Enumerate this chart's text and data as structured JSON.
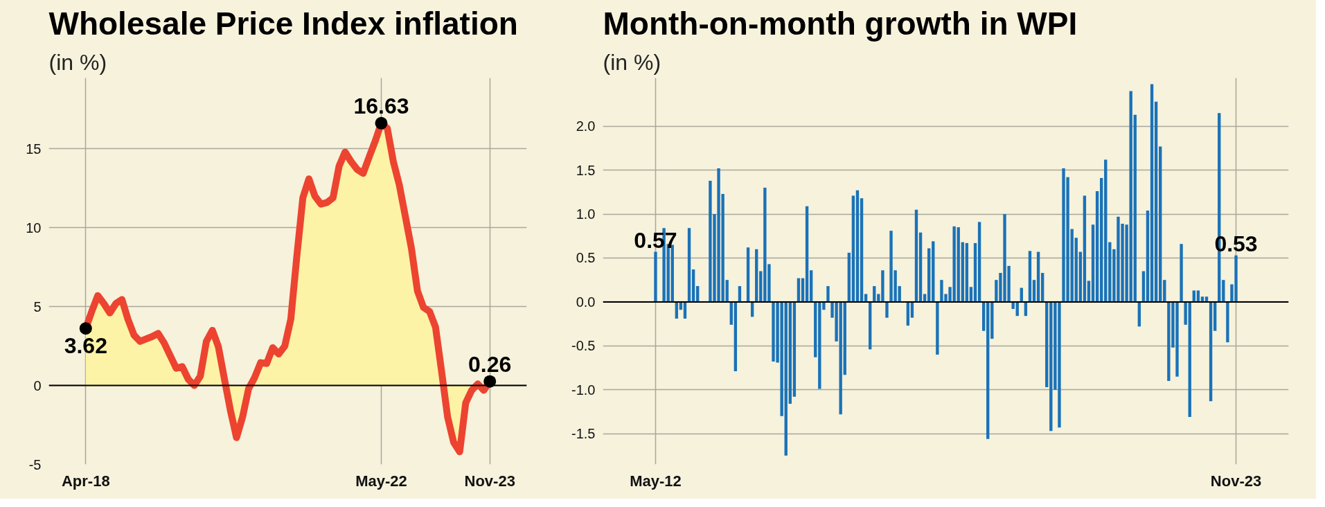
{
  "chart_data": [
    {
      "type": "area",
      "title": "Wholesale Price Index inflation",
      "subtitle": "(in %)",
      "categories": [
        "Apr-18",
        null,
        null,
        null,
        null,
        null,
        null,
        null,
        null,
        null,
        null,
        null,
        null,
        null,
        null,
        null,
        null,
        null,
        null,
        null,
        null,
        null,
        null,
        null,
        null,
        null,
        null,
        null,
        null,
        null,
        null,
        null,
        null,
        null,
        null,
        null,
        null,
        null,
        null,
        null,
        null,
        null,
        null,
        null,
        null,
        null,
        null,
        null,
        null,
        "May-22",
        null,
        null,
        null,
        null,
        null,
        null,
        null,
        null,
        null,
        null,
        null,
        null,
        null,
        null,
        null,
        null,
        null,
        "Nov-23"
      ],
      "series": [
        {
          "color": "#ec4430",
          "values": [
            3.62,
            4.7,
            5.7,
            5.2,
            4.6,
            5.2,
            5.45,
            4.2,
            3.2,
            2.8,
            2.95,
            3.1,
            3.3,
            2.7,
            1.9,
            1.1,
            1.2,
            0.4,
            0.0,
            0.6,
            2.8,
            3.5,
            2.45,
            0.4,
            -1.6,
            -3.3,
            -2.0,
            -0.2,
            0.5,
            1.45,
            1.4,
            2.4,
            2.0,
            2.5,
            4.2,
            8.2,
            11.9,
            13.1,
            12.0,
            11.5,
            11.6,
            11.9,
            13.9,
            14.8,
            14.2,
            13.7,
            13.45,
            14.5,
            15.5,
            16.63,
            16.3,
            14.2,
            12.7,
            10.7,
            8.7,
            6.0,
            4.95,
            4.7,
            3.7,
            0.9,
            -2.0,
            -3.6,
            -4.2,
            -1.1,
            -0.3,
            0.1,
            -0.3,
            0.26
          ],
          "value_labels": [
            "3.62",
            null,
            null,
            null,
            null,
            null,
            null,
            null,
            null,
            null,
            null,
            null,
            null,
            null,
            null,
            null,
            null,
            null,
            null,
            null,
            null,
            null,
            null,
            null,
            null,
            null,
            null,
            null,
            null,
            null,
            null,
            null,
            null,
            null,
            null,
            null,
            null,
            null,
            null,
            null,
            null,
            null,
            null,
            null,
            null,
            null,
            null,
            null,
            null,
            "16.63",
            null,
            null,
            null,
            null,
            null,
            null,
            null,
            null,
            null,
            null,
            null,
            null,
            null,
            null,
            null,
            null,
            null,
            "0.26"
          ]
        }
      ],
      "ylim": [
        -5,
        19.5
      ],
      "yticks": [
        15,
        10,
        5,
        0,
        -5
      ],
      "grid": true,
      "ref_lines": [
        {
          "axis": "y",
          "value": 0,
          "color": "#000000"
        }
      ]
    },
    {
      "type": "bar",
      "title": "Month-on-month growth in WPI",
      "subtitle": "(in %)",
      "categories": [
        "May-12",
        null,
        null,
        null,
        null,
        null,
        null,
        null,
        null,
        null,
        null,
        null,
        null,
        null,
        null,
        null,
        null,
        null,
        null,
        null,
        null,
        null,
        null,
        null,
        null,
        null,
        null,
        null,
        null,
        null,
        null,
        null,
        null,
        null,
        null,
        null,
        null,
        null,
        null,
        null,
        null,
        null,
        null,
        null,
        null,
        null,
        null,
        null,
        null,
        null,
        null,
        null,
        null,
        null,
        null,
        null,
        null,
        null,
        null,
        null,
        null,
        null,
        null,
        null,
        null,
        null,
        null,
        null,
        null,
        null,
        null,
        null,
        null,
        null,
        null,
        null,
        null,
        null,
        null,
        null,
        null,
        null,
        null,
        null,
        null,
        null,
        null,
        null,
        null,
        null,
        null,
        null,
        null,
        null,
        null,
        null,
        null,
        null,
        null,
        null,
        null,
        null,
        null,
        null,
        null,
        null,
        null,
        null,
        null,
        null,
        null,
        null,
        null,
        null,
        null,
        null,
        null,
        null,
        null,
        null,
        null,
        null,
        null,
        null,
        null,
        null,
        null,
        null,
        null,
        null,
        null,
        null,
        null,
        null,
        null,
        null,
        null,
        null,
        "Nov-23"
      ],
      "series": [
        {
          "color": "#1a72b8",
          "values": [
            0.57,
            0,
            0.84,
            0.66,
            0.65,
            -0.19,
            -0.09,
            -0.19,
            0.84,
            0.37,
            0.18,
            0,
            0,
            1.38,
            1.0,
            1.52,
            1.23,
            0.25,
            -0.26,
            -0.79,
            0.18,
            0,
            0.62,
            -0.17,
            0.6,
            0.35,
            1.3,
            0.43,
            -0.68,
            -0.69,
            -1.3,
            -1.75,
            -1.16,
            -1.08,
            0.27,
            0.27,
            1.09,
            0.36,
            -0.63,
            -0.99,
            -0.09,
            0.18,
            -0.18,
            -0.45,
            -1.28,
            -0.83,
            0.56,
            1.21,
            1.27,
            1.18,
            0.09,
            -0.54,
            0.18,
            0.09,
            0.36,
            -0.18,
            0.81,
            0.36,
            0.18,
            0,
            -0.27,
            -0.18,
            1.05,
            0.79,
            0.09,
            0.61,
            0.69,
            -0.6,
            0.25,
            0.09,
            0.17,
            0.86,
            0.85,
            0.68,
            0.67,
            0.17,
            0.67,
            0.91,
            -0.33,
            -1.56,
            -0.42,
            0.25,
            0.33,
            1.0,
            0.41,
            -0.08,
            -0.16,
            0.16,
            -0.16,
            0.58,
            0.25,
            0.57,
            0.33,
            -0.97,
            -1.47,
            -1.0,
            -1.43,
            1.52,
            1.42,
            0.83,
            0.73,
            0.57,
            1.21,
            0.24,
            0.88,
            1.26,
            1.41,
            1.62,
            0.68,
            0.6,
            0.97,
            0.89,
            0.88,
            2.4,
            2.13,
            -0.28,
            0.35,
            1.04,
            2.48,
            2.28,
            1.77,
            0.25,
            -0.9,
            -0.52,
            -0.85,
            0.66,
            -0.26,
            -1.31,
            0.13,
            0.13,
            0.06,
            0.06,
            -1.13,
            -0.33,
            2.15,
            0.25,
            -0.46,
            0.2,
            0.53
          ],
          "value_labels": [
            "0.57",
            null,
            null,
            null,
            null,
            null,
            null,
            null,
            null,
            null,
            null,
            null,
            null,
            null,
            null,
            null,
            null,
            null,
            null,
            null,
            null,
            null,
            null,
            null,
            null,
            null,
            null,
            null,
            null,
            null,
            null,
            null,
            null,
            null,
            null,
            null,
            null,
            null,
            null,
            null,
            null,
            null,
            null,
            null,
            null,
            null,
            null,
            null,
            null,
            null,
            null,
            null,
            null,
            null,
            null,
            null,
            null,
            null,
            null,
            null,
            null,
            null,
            null,
            null,
            null,
            null,
            null,
            null,
            null,
            null,
            null,
            null,
            null,
            null,
            null,
            null,
            null,
            null,
            null,
            null,
            null,
            null,
            null,
            null,
            null,
            null,
            null,
            null,
            null,
            null,
            null,
            null,
            null,
            null,
            null,
            null,
            null,
            null,
            null,
            null,
            null,
            null,
            null,
            null,
            null,
            null,
            null,
            null,
            null,
            null,
            null,
            null,
            null,
            null,
            null,
            null,
            null,
            null,
            null,
            null,
            null,
            null,
            null,
            null,
            null,
            null,
            null,
            null,
            null,
            null,
            null,
            null,
            null,
            null,
            null,
            null,
            null,
            null,
            "0.53"
          ]
        }
      ],
      "ylim": [
        -1.85,
        2.55
      ],
      "yticks": [
        {
          "value": 2,
          "label": "2.0"
        },
        1.5,
        {
          "value": 1,
          "label": "1.0"
        },
        0.5,
        {
          "value": 0,
          "label": "0.0"
        },
        -0.5,
        {
          "value": -1,
          "label": "-1.0"
        },
        -1.5
      ],
      "grid": true,
      "ref_lines": [
        {
          "axis": "y",
          "value": 0,
          "color": "#000000"
        }
      ]
    }
  ]
}
